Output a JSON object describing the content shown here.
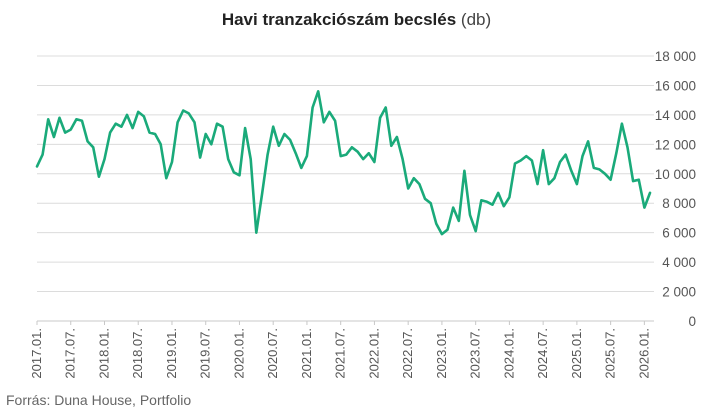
{
  "title": {
    "main": "Havi tranzakciószám becslés",
    "unit": "(db)"
  },
  "source": "Forrás: Duna House, Portfolio",
  "colors": {
    "line": "#1aaa7a",
    "grid": "#dcdcdc",
    "axis": "#c8c8c8"
  },
  "chart_data": {
    "type": "line",
    "title": "Havi tranzakciószám becslés (db)",
    "xlabel": "",
    "ylabel": "",
    "ylim": [
      0,
      18000
    ],
    "yticks": [
      0,
      2000,
      4000,
      6000,
      8000,
      10000,
      12000,
      14000,
      16000,
      18000
    ],
    "ytick_labels": [
      "0",
      "2 000",
      "4 000",
      "6 000",
      "8 000",
      "10 000",
      "12 000",
      "14 000",
      "16 000",
      "18 000"
    ],
    "xtick_labels": [
      "2017.01.",
      "2017.07.",
      "2018.01.",
      "2018.07.",
      "2019.01.",
      "2019.07.",
      "2020.01.",
      "2020.07.",
      "2021.01.",
      "2021.07.",
      "2022.01.",
      "2022.07.",
      "2023.01.",
      "2023.07.",
      "2024.01.",
      "2024.07.",
      "2025.01.",
      "2025.07.",
      "2026.01."
    ],
    "grid": "horizontal",
    "legend": "none",
    "x_start": "2017.01.",
    "x_interval": "monthly",
    "series": [
      {
        "values": [
          10500,
          11300,
          13700,
          12500,
          13800,
          12800,
          13000,
          13700,
          13600,
          12200,
          11800,
          9800,
          11000,
          12800,
          13400,
          13200,
          14000,
          13100,
          14200,
          13900,
          12800,
          12700,
          12000,
          9700,
          10800,
          13500,
          14300,
          14100,
          13500,
          11100,
          12700,
          12000,
          13400,
          13200,
          11000,
          10100,
          9900,
          13100,
          11000,
          6000,
          8600,
          11300,
          13200,
          11900,
          12700,
          12300,
          11400,
          10400,
          11200,
          14500,
          15600,
          13500,
          14200,
          13600,
          11200,
          11300,
          11800,
          11500,
          11000,
          11400,
          10800,
          13800,
          14500,
          11900,
          12500,
          11000,
          9000,
          9700,
          9300,
          8300,
          8000,
          6600,
          5900,
          6200,
          7700,
          6800,
          10200,
          7200,
          6100,
          8200,
          8100,
          7900,
          8700,
          7800,
          8400,
          10700,
          10900,
          11200,
          10900,
          9300,
          11600,
          9300,
          9700,
          10800,
          11300,
          10200,
          9300,
          11200,
          12200,
          10400,
          10300,
          10000,
          9600,
          11400,
          13400,
          11800,
          9500,
          9600,
          7700,
          8700
        ]
      }
    ]
  }
}
